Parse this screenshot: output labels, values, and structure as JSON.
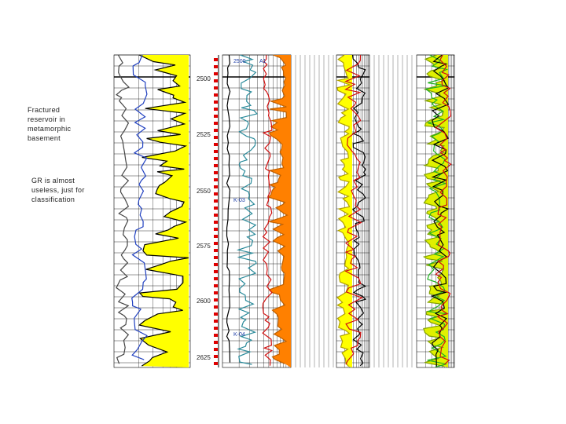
{
  "notes": {
    "fractured": "Fractured\nreservoir in\nmetamorphic\nbasement",
    "gr": "GR is almost\nuseless, just for\nclassification"
  },
  "depth_track": {
    "labels": [
      "2500",
      "2525",
      "2550",
      "2575",
      "2600",
      "2625"
    ],
    "top_depth": 2485,
    "bottom_depth": 2630
  },
  "curve_labels": {
    "top_a": "2500",
    "top_b": "A1",
    "mid": "K-03",
    "low": "K-04"
  },
  "colors": {
    "gr_fill": "#ffff00",
    "porosity_fill": "#ff8000",
    "resistivity_fill": "#e0f000",
    "grid": "#000000",
    "depth_marker": "#e00000",
    "curve_blue": "#2040c0",
    "curve_teal": "#2a8a9a",
    "curve_red": "#d01010",
    "curve_green": "#20b020"
  }
}
